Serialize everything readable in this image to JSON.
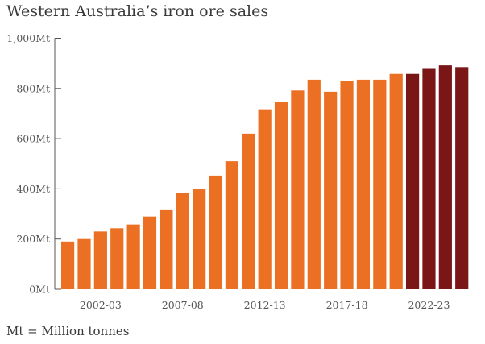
{
  "chart_data": {
    "type": "bar",
    "title": "Western Australia’s iron ore sales",
    "footnote": "Mt = Million tonnes",
    "ylim": [
      0,
      1000
    ],
    "grid": false,
    "y_ticks": [
      {
        "value": 0,
        "label": "0Mt"
      },
      {
        "value": 200,
        "label": "200Mt"
      },
      {
        "value": 400,
        "label": "400Mt"
      },
      {
        "value": 600,
        "label": "600Mt"
      },
      {
        "value": 800,
        "label": "800Mt"
      },
      {
        "value": 1000,
        "label": "1,000Mt"
      }
    ],
    "x_tick_labels": [
      {
        "index": 2,
        "label": "2002-03"
      },
      {
        "index": 7,
        "label": "2007-08"
      },
      {
        "index": 12,
        "label": "2012-13"
      },
      {
        "index": 17,
        "label": "2017-18"
      },
      {
        "index": 22,
        "label": "2022-23"
      }
    ],
    "values": [
      190,
      200,
      230,
      243,
      258,
      290,
      315,
      383,
      398,
      453,
      510,
      620,
      717,
      748,
      792,
      835,
      787,
      830,
      835,
      835,
      858,
      858,
      878,
      892,
      885
    ],
    "colors": {
      "actual": "#EC7023",
      "forecast": "#7A1616",
      "axis": "#555555"
    },
    "forecast_start_index": 21
  }
}
